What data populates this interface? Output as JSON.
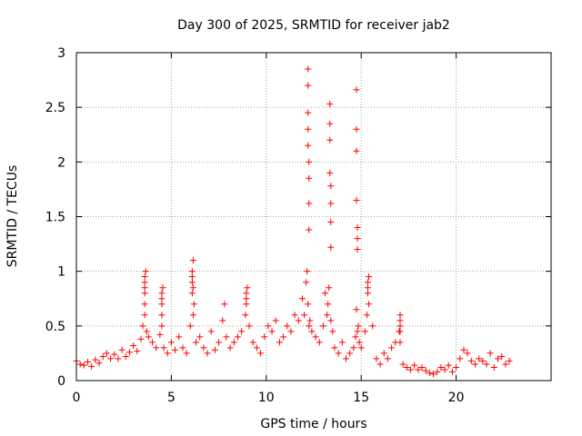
{
  "chart_data": {
    "type": "scatter",
    "title": "Day 300 of 2025, SRMTID for receiver jab2",
    "xlabel": "GPS time / hours",
    "ylabel": "SRMTID / TECUs",
    "xlim": [
      0,
      25
    ],
    "ylim": [
      0,
      3
    ],
    "xticks": [
      0,
      5,
      10,
      15,
      20
    ],
    "xtick_labels": [
      "0",
      "5",
      "10",
      "15",
      "20"
    ],
    "yticks": [
      0,
      0.5,
      1,
      1.5,
      2,
      2.5,
      3
    ],
    "ytick_labels": [
      "0",
      "0.5",
      "1",
      "1.5",
      "2",
      "2.5",
      "3"
    ],
    "grid": true,
    "marker": "+",
    "color": "#ff0000",
    "series": [
      {
        "name": "SRMTID",
        "x": [
          0.0,
          0.2,
          0.4,
          0.6,
          0.8,
          1.0,
          1.2,
          1.4,
          1.6,
          1.8,
          2.0,
          2.2,
          2.4,
          2.6,
          2.8,
          3.0,
          3.2,
          3.4,
          3.5,
          3.6,
          3.65,
          3.7,
          3.8,
          4.0,
          4.2,
          4.4,
          4.5,
          4.55,
          4.6,
          4.8,
          5.0,
          5.2,
          5.4,
          5.6,
          5.8,
          6.0,
          6.1,
          6.15,
          6.2,
          6.3,
          6.5,
          6.7,
          6.9,
          7.1,
          7.3,
          7.5,
          7.7,
          7.8,
          7.9,
          8.1,
          8.3,
          8.5,
          8.7,
          8.9,
          9.0,
          9.1,
          9.3,
          9.5,
          9.7,
          9.9,
          10.1,
          10.3,
          10.5,
          10.7,
          10.9,
          11.1,
          11.3,
          11.5,
          11.7,
          11.9,
          12.0,
          12.1,
          12.15,
          12.2,
          12.25,
          12.3,
          12.4,
          12.6,
          12.8,
          13.0,
          13.1,
          13.2,
          13.25,
          13.3,
          13.4,
          13.5,
          13.6,
          13.8,
          14.0,
          14.2,
          14.4,
          14.6,
          14.7,
          14.75,
          14.8,
          14.85,
          14.9,
          15.0,
          15.2,
          15.3,
          15.4,
          15.6,
          15.8,
          16.0,
          16.2,
          16.4,
          16.6,
          16.8,
          17.0,
          17.05,
          17.2,
          17.4,
          17.6,
          17.8,
          18.0,
          18.2,
          18.4,
          18.6,
          18.8,
          19.0,
          19.2,
          19.4,
          19.6,
          19.8,
          20.0,
          20.2,
          20.4,
          20.6,
          20.8,
          21.0,
          21.2,
          21.4,
          21.6,
          21.8,
          22.0,
          22.2,
          22.4,
          22.6,
          22.8,
          3.6,
          3.6,
          3.6,
          3.6,
          3.6,
          4.5,
          4.5,
          4.5,
          4.5,
          6.1,
          6.1,
          6.1,
          6.15,
          6.15,
          8.95,
          8.95,
          8.95,
          12.2,
          12.2,
          12.2,
          12.2,
          12.2,
          12.25,
          12.25,
          12.25,
          12.25,
          13.35,
          13.35,
          13.35,
          13.35,
          13.4,
          13.4,
          13.4,
          13.4,
          14.75,
          14.75,
          14.75,
          14.75,
          14.8,
          14.8,
          14.8,
          15.35,
          15.35,
          15.35,
          15.4,
          17.05,
          17.05,
          17.05,
          17.05
        ],
        "y": [
          0.18,
          0.15,
          0.14,
          0.17,
          0.13,
          0.19,
          0.16,
          0.22,
          0.25,
          0.2,
          0.24,
          0.2,
          0.28,
          0.22,
          0.26,
          0.32,
          0.27,
          0.38,
          0.5,
          0.85,
          1.0,
          0.45,
          0.4,
          0.35,
          0.3,
          0.42,
          0.7,
          0.85,
          0.3,
          0.25,
          0.35,
          0.28,
          0.4,
          0.3,
          0.25,
          0.5,
          0.95,
          1.1,
          0.7,
          0.35,
          0.4,
          0.3,
          0.25,
          0.45,
          0.28,
          0.35,
          0.55,
          0.7,
          0.4,
          0.3,
          0.35,
          0.4,
          0.45,
          0.6,
          0.85,
          0.5,
          0.35,
          0.3,
          0.25,
          0.4,
          0.5,
          0.45,
          0.55,
          0.35,
          0.4,
          0.5,
          0.45,
          0.6,
          0.55,
          0.75,
          0.6,
          0.9,
          1.0,
          0.7,
          0.5,
          0.55,
          0.45,
          0.4,
          0.35,
          0.5,
          0.8,
          0.6,
          0.7,
          0.85,
          0.55,
          0.45,
          0.3,
          0.25,
          0.35,
          0.2,
          0.25,
          0.3,
          0.4,
          0.65,
          0.45,
          0.5,
          0.35,
          0.3,
          0.45,
          0.6,
          0.95,
          0.5,
          0.2,
          0.15,
          0.25,
          0.2,
          0.3,
          0.35,
          0.45,
          0.6,
          0.15,
          0.12,
          0.1,
          0.14,
          0.1,
          0.12,
          0.09,
          0.07,
          0.06,
          0.08,
          0.12,
          0.1,
          0.14,
          0.08,
          0.12,
          0.2,
          0.28,
          0.25,
          0.18,
          0.15,
          0.2,
          0.18,
          0.15,
          0.25,
          0.12,
          0.2,
          0.22,
          0.15,
          0.18,
          0.6,
          0.7,
          0.8,
          0.9,
          0.95,
          0.5,
          0.6,
          0.75,
          0.8,
          0.8,
          0.9,
          1.0,
          0.85,
          0.6,
          0.7,
          0.75,
          0.8,
          2.85,
          2.7,
          2.45,
          2.3,
          2.15,
          2.0,
          1.85,
          1.62,
          1.38,
          2.53,
          2.35,
          2.2,
          1.9,
          1.78,
          1.62,
          1.45,
          1.22,
          2.66,
          2.3,
          2.1,
          1.65,
          1.4,
          1.3,
          1.2,
          0.8,
          0.9,
          0.85,
          0.7,
          0.5,
          0.45,
          0.55,
          0.35
        ]
      }
    ]
  }
}
